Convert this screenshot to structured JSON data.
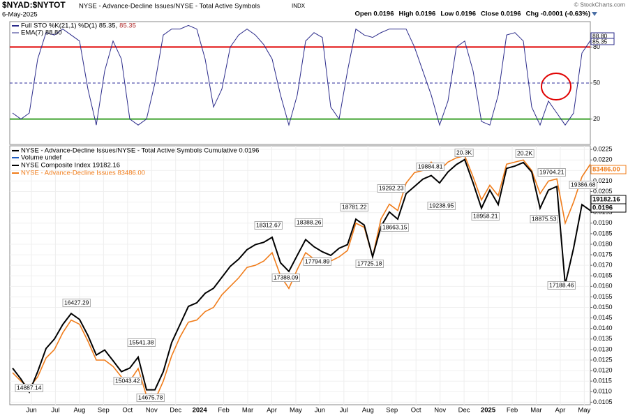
{
  "header": {
    "symbol": "$NYAD:$NYTOT",
    "name": "NYSE - Advance-Decline Issues/NYSE - Total Active Symbols",
    "exchange": "INDX",
    "date": "6-May-2025",
    "quote": [
      "Open 0.0196",
      "High 0.0196",
      "Low 0.0196",
      "Close 0.0196",
      "Chg -0.0001 (-0.63%)"
    ],
    "credit": "© StockCharts.com"
  },
  "chart_data": [
    {
      "type": "line",
      "ylim": [
        0,
        100
      ],
      "yticks": [
        20,
        50,
        80
      ],
      "tick_line_colors": [
        "#3aa02a",
        "#2a2a9a",
        "#e00000"
      ],
      "tick_line_dashed": [
        false,
        true,
        false
      ],
      "legend_extra": [
        "EMA(7) 88.80"
      ],
      "value_tags": [
        "88.80",
        "85.35"
      ],
      "series": [
        {
          "name": "Full STO %K(21,1) %D(1) 85.35,",
          "name_tail": "85.35",
          "color": "#2a2a8a",
          "values": [
            25,
            20,
            25,
            70,
            92,
            90,
            95,
            90,
            85,
            45,
            15,
            60,
            85,
            70,
            20,
            15,
            20,
            50,
            90,
            95,
            95,
            98,
            95,
            70,
            30,
            45,
            80,
            90,
            95,
            90,
            82,
            70,
            40,
            15,
            40,
            85,
            92,
            88,
            30,
            20,
            60,
            95,
            90,
            88,
            92,
            95,
            95,
            95,
            80,
            60,
            40,
            15,
            35,
            80,
            85,
            60,
            18,
            15,
            40,
            90,
            92,
            85,
            30,
            15,
            35,
            25,
            15,
            25,
            75,
            85.35
          ]
        }
      ]
    },
    {
      "type": "line",
      "ylim": [
        0.01038,
        0.02267
      ],
      "grid": true,
      "yticks": [
        0.0105,
        {
          "value": 0.011,
          "label": "0.0110"
        },
        0.0115,
        {
          "value": 0.012,
          "label": "0.0120"
        },
        0.0125,
        {
          "value": 0.013,
          "label": "0.0130"
        },
        0.0135,
        {
          "value": 0.014,
          "label": "0.0140"
        },
        0.0145,
        {
          "value": 0.015,
          "label": "0.0150"
        },
        0.0155,
        {
          "value": 0.016,
          "label": "0.0160"
        },
        0.0165,
        {
          "value": 0.017,
          "label": "0.0170"
        },
        0.0175,
        {
          "value": 0.018,
          "label": "0.0180"
        },
        0.0185,
        {
          "value": 0.019,
          "label": "0.0190"
        },
        0.0195,
        {
          "value": 0.02,
          "label": "0.0200"
        },
        0.0205,
        {
          "value": 0.021,
          "label": "0.0210"
        },
        0.0215,
        {
          "value": 0.022,
          "label": "0.0220"
        },
        0.0225
      ],
      "x_labels": [
        "Jun",
        "Jul",
        "Aug",
        "Sep",
        "Oct",
        "Nov",
        "Dec",
        "2024",
        "Feb",
        "Mar",
        "Apr",
        "May",
        "Jun",
        "Jul",
        "Aug",
        "Sep",
        "Oct",
        "Nov",
        "Dec",
        "2025",
        "Feb",
        "Mar",
        "Apr",
        "May"
      ],
      "legend_extra": [
        "Volume undef",
        "NYSE Composite Index 19182.16"
      ],
      "annotations": [
        "16427.29",
        "15541.38",
        "14887.14",
        "15043.42",
        "14675.78",
        "18312.67",
        "18388.26",
        "17388.09",
        "17794.89",
        "18781.22",
        "17725.18",
        "18663.15",
        "19292.23",
        "19884.81",
        "19238.95",
        "20.3K",
        "18958.21",
        "20.2K",
        "19704.21",
        "18875.53",
        "19386.68",
        "17188.46"
      ],
      "value_tags": [
        "83486.00",
        "19182.16",
        "0.0196"
      ],
      "series": [
        {
          "name": "NYSE - Advance-Decline Issues 83486.00",
          "color": "#f07c1a",
          "values": [
            0.0119,
            0.0115,
            0.0112,
            0.0117,
            0.0126,
            0.013,
            0.0138,
            0.0144,
            0.0142,
            0.0134,
            0.0125,
            0.0125,
            0.0122,
            0.0117,
            0.0115,
            0.0121,
            0.0108,
            0.0106,
            0.0115,
            0.0127,
            0.0136,
            0.0143,
            0.0144,
            0.0148,
            0.015,
            0.0156,
            0.016,
            0.0164,
            0.0169,
            0.017,
            0.0172,
            0.0176,
            0.0165,
            0.0159,
            0.0168,
            0.0176,
            0.0173,
            0.0172,
            0.0172,
            0.0174,
            0.0177,
            0.019,
            0.0188,
            0.0174,
            0.0192,
            0.0199,
            0.0196,
            0.0209,
            0.0214,
            0.0215,
            0.0219,
            0.0215,
            0.0219,
            0.0221,
            0.0222,
            0.0212,
            0.0201,
            0.0208,
            0.0203,
            0.0218,
            0.0219,
            0.022,
            0.0215,
            0.0204,
            0.021,
            0.0211,
            0.019,
            0.02,
            0.0212,
            0.0218
          ]
        },
        {
          "name": "NYSE - Advance-Decline Issues/NYSE - Total Active Symbols Cumulative 0.0196",
          "color": "#000000",
          "values": [
            0.01212,
            0.0116,
            0.01098,
            0.01195,
            0.01305,
            0.0135,
            0.01419,
            0.01471,
            0.01443,
            0.01367,
            0.01274,
            0.01298,
            0.01247,
            0.01195,
            0.01212,
            0.01264,
            0.01109,
            0.01109,
            0.01195,
            0.01333,
            0.01419,
            0.01505,
            0.01522,
            0.01567,
            0.01591,
            0.01643,
            0.01695,
            0.01729,
            0.01774,
            0.01798,
            0.01809,
            0.01833,
            0.01712,
            0.01671,
            0.01747,
            0.01822,
            0.01788,
            0.01764,
            0.01747,
            0.01781,
            0.01798,
            0.01919,
            0.01891,
            0.0174,
            0.01884,
            0.01953,
            0.01919,
            0.0204,
            0.02074,
            0.02109,
            0.02126,
            0.02091,
            0.02143,
            0.02178,
            0.02202,
            0.02091,
            0.01971,
            0.02057,
            0.01988,
            0.0216,
            0.02171,
            0.02188,
            0.02143,
            0.01971,
            0.02057,
            0.02074,
            0.01609,
            0.01781,
            0.01988,
            0.0196
          ]
        }
      ]
    }
  ]
}
